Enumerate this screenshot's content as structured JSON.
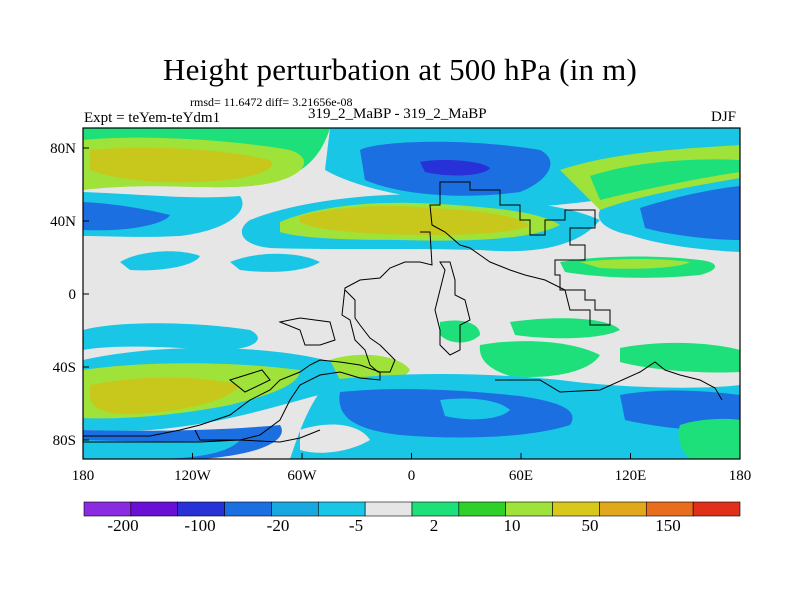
{
  "chart_data": {
    "type": "heatmap",
    "title": "Height perturbation at 500 hPa (in m)",
    "subtitle_stats": "rmsd= 11.6472 diff= 3.21656e-08",
    "left_label": "Expt = teYem-teYdm1",
    "center_label": "319_2_MaBP - 319_2_MaBP",
    "right_label": "DJF",
    "x_ticks": [
      "180",
      "120W",
      "60W",
      "0",
      "60E",
      "120E",
      "180"
    ],
    "y_ticks": [
      "80N",
      "40N",
      "0",
      "40S",
      "80S"
    ],
    "colorbar": {
      "labels": [
        "-200",
        "-100",
        "-20",
        "-5",
        "2",
        "10",
        "50",
        "150"
      ],
      "colors": [
        "#8a2be2",
        "#6a0fd6",
        "#2830d8",
        "#1c6fe0",
        "#19a8e0",
        "#19c6e6",
        "#e6e6e6",
        "#1ee07a",
        "#2fd02a",
        "#9ee23a",
        "#d8c81c",
        "#e0a81c",
        "#e86e1e",
        "#e0301c"
      ]
    }
  }
}
